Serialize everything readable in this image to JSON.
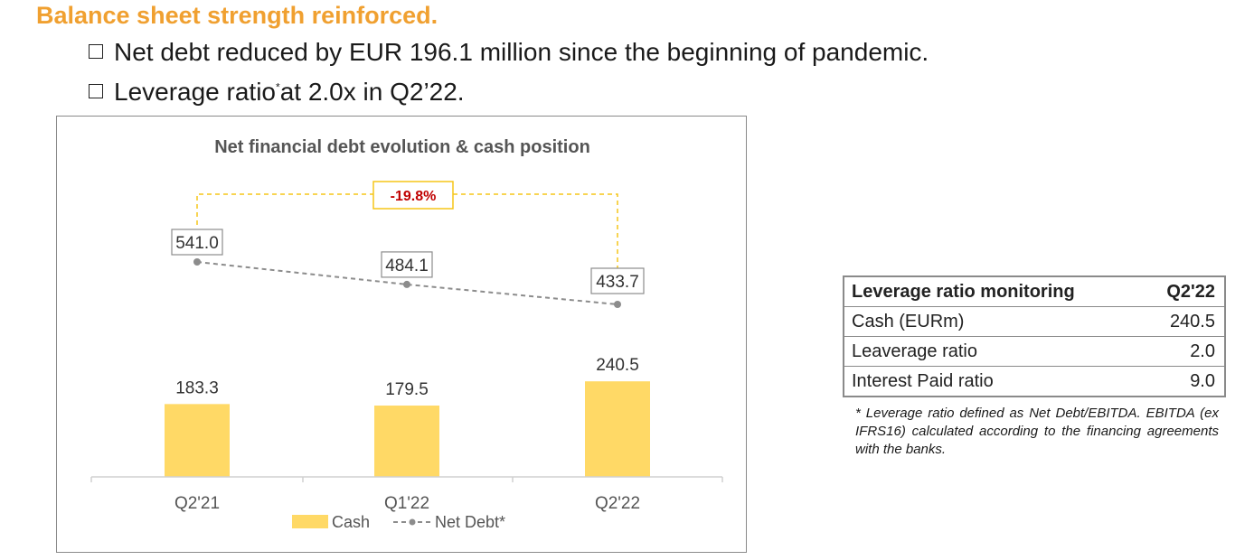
{
  "heading": "Balance sheet strength reinforced.",
  "bullets": {
    "b1": "Net debt reduced by EUR 196.1 million since the beginning of pandemic.",
    "b2_pre": "Leverage ratio",
    "b2_sup": "*",
    "b2_post": "at 2.0x in Q2’22."
  },
  "chart_data": {
    "type": "bar",
    "title": "Net financial debt evolution & cash position",
    "categories": [
      "Q2'21",
      "Q1'22",
      "Q2'22"
    ],
    "series": [
      {
        "name": "Cash",
        "type": "bar",
        "values": [
          183.3,
          179.5,
          240.5
        ],
        "labels": [
          "183.3",
          "179.5",
          "240.5"
        ],
        "color": "#ffd966"
      },
      {
        "name": "Net Debt*",
        "type": "line",
        "values": [
          541.0,
          484.1,
          433.7
        ],
        "labels": [
          "541.0",
          "484.1",
          "433.7"
        ],
        "color": "#8c8c8c"
      }
    ],
    "annotation": "-19.8%",
    "annotation_color": "#c00000",
    "bracket_color": "#f5c518",
    "grid": false,
    "legend": "bottom"
  },
  "table": {
    "header": [
      "Leverage ratio monitoring",
      "Q2'22"
    ],
    "rows": [
      [
        "Cash (EURm)",
        "240.5"
      ],
      [
        "Leaverage ratio",
        "2.0"
      ],
      [
        "Interest Paid ratio",
        "9.0"
      ]
    ]
  },
  "note": "* Leverage ratio defined as Net Debt/EBITDA. EBITDA (ex IFRS16) calculated according to the financing agreements with the banks."
}
